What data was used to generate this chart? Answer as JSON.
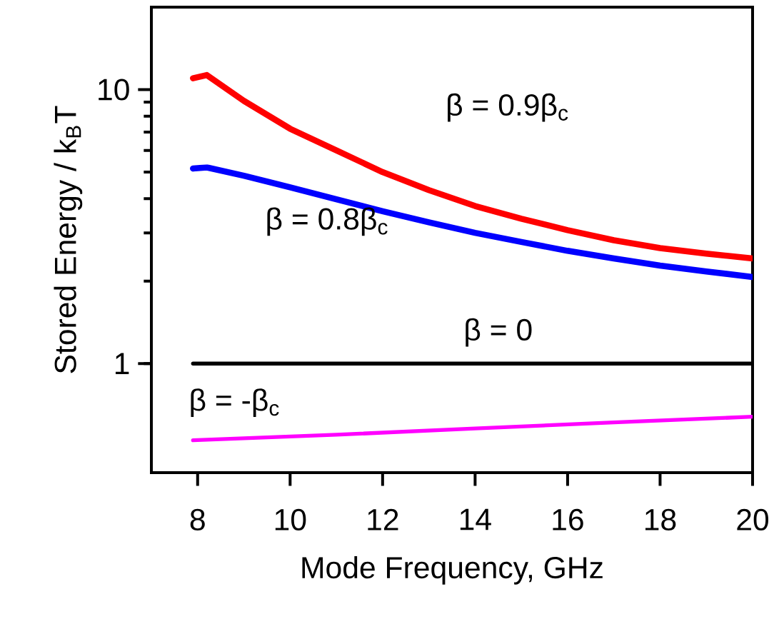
{
  "chart_data": {
    "type": "line",
    "xlabel": "Mode Frequency, GHz",
    "ylabel": "Stored Energy / k$_{B}$T",
    "log": "y",
    "xlim": [
      7,
      20
    ],
    "ylim": [
      0.4,
      20
    ],
    "xticks": [
      8,
      10,
      12,
      14,
      16,
      18,
      20
    ],
    "yticks": [
      1,
      10
    ],
    "series": [
      {
        "name": "β = 0.9β$_{c}$",
        "color": "#ff0000",
        "x": [
          7.9,
          8.2,
          9,
          10,
          11,
          12,
          13,
          14,
          15,
          16,
          17,
          18,
          19,
          20
        ],
        "values": [
          11,
          11.3,
          9.1,
          7.2,
          6.0,
          5.0,
          4.3,
          3.76,
          3.38,
          3.07,
          2.82,
          2.64,
          2.52,
          2.42
        ]
      },
      {
        "name": "β = 0.8β$_{c}$",
        "color": "#0000ff",
        "x": [
          7.9,
          8.2,
          9,
          10,
          11,
          12,
          13,
          14,
          15,
          16,
          17,
          18,
          19,
          20
        ],
        "values": [
          5.15,
          5.2,
          4.85,
          4.4,
          3.98,
          3.6,
          3.28,
          3.0,
          2.78,
          2.58,
          2.42,
          2.28,
          2.17,
          2.07
        ]
      },
      {
        "name": "β = 0",
        "color": "#000000",
        "x": [
          7.9,
          20
        ],
        "values": [
          1,
          1
        ]
      },
      {
        "name": "β = -β$_{c}$",
        "color": "#ff00ff",
        "x": [
          7.9,
          11,
          14,
          17,
          20
        ],
        "values": [
          0.525,
          0.55,
          0.58,
          0.61,
          0.64
        ]
      }
    ]
  }
}
